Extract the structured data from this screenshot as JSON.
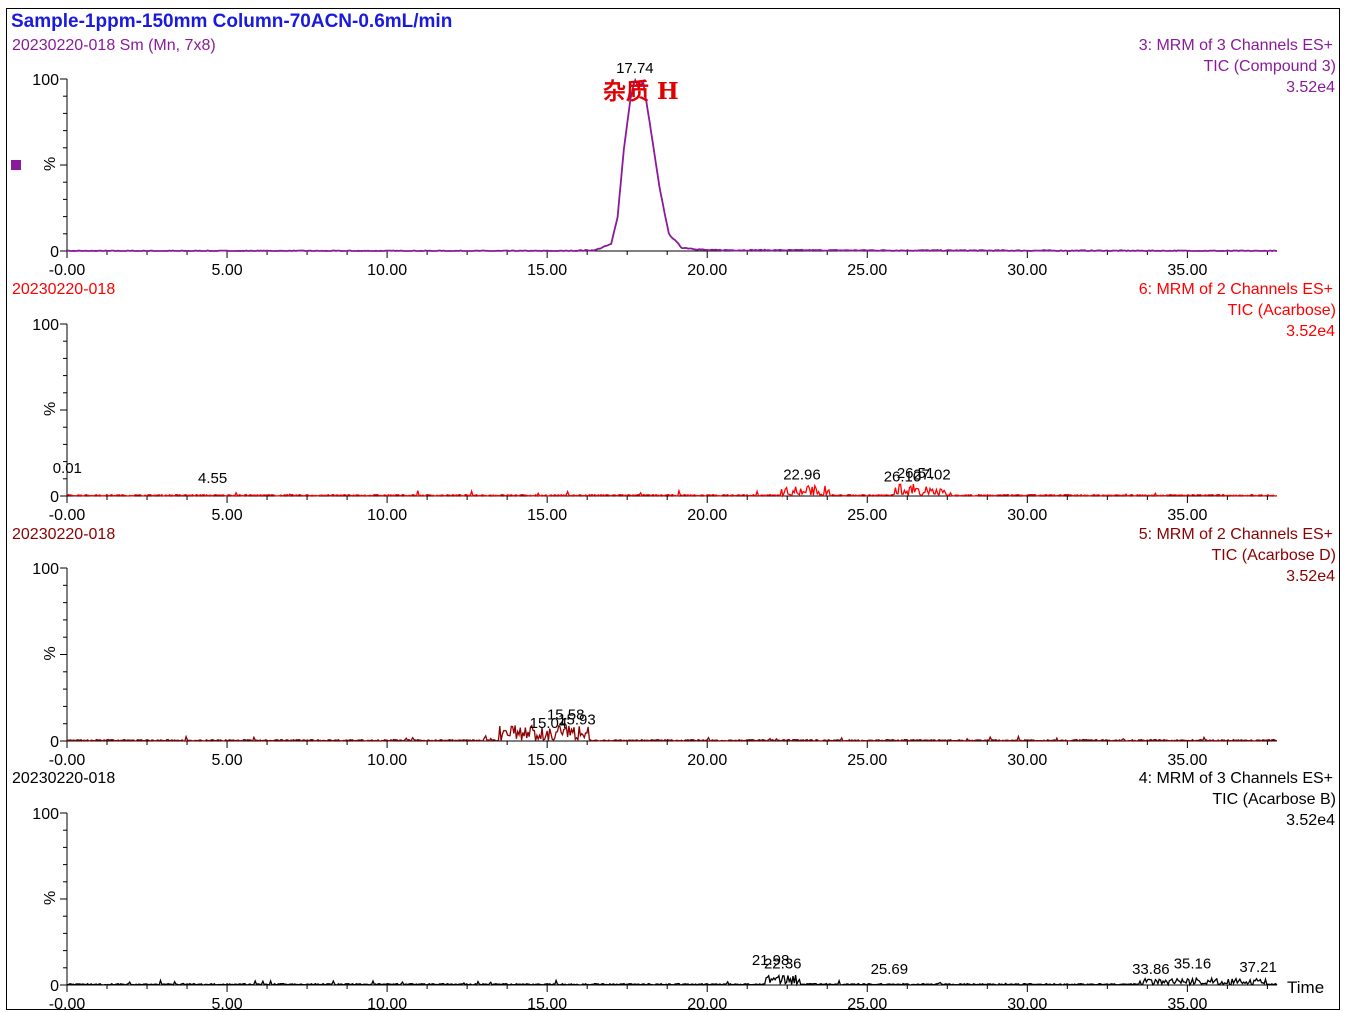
{
  "title": "Sample-1ppm-150mm Column-70ACN-0.6mL/min",
  "x_axis_label": "Time",
  "x_ticks": [
    "-0.00",
    "5.00",
    "10.00",
    "15.00",
    "20.00",
    "25.00",
    "30.00",
    "35.00"
  ],
  "y_tick_labels": {
    "top": "100",
    "bottom": "0",
    "unit": "%"
  },
  "annotation": {
    "text": "杂质 H",
    "color": "#e00000"
  },
  "chart_data": [
    {
      "type": "line",
      "sample_label": "20230220-018 Sm (Mn, 7x8)",
      "channel": "3: MRM of 3 Channels ES+",
      "trace": "TIC (Compound 3)",
      "intensity": "3.52e4",
      "color": "#8b1a9b",
      "xlim": [
        0,
        37.8
      ],
      "ylim": [
        0,
        100
      ],
      "peaks": [
        {
          "x": 17.74,
          "y": 100,
          "label": "17.74"
        }
      ],
      "series": {
        "x": [
          0,
          15.5,
          16.5,
          17.0,
          17.2,
          17.4,
          17.6,
          17.74,
          17.85,
          18.0,
          18.2,
          18.5,
          18.8,
          19.2,
          20.0,
          37.8
        ],
        "values": [
          0,
          0,
          0.5,
          4,
          20,
          60,
          88,
          100,
          95,
          98,
          75,
          38,
          10,
          2,
          0.5,
          0
        ]
      }
    },
    {
      "type": "line",
      "sample_label": "20230220-018",
      "channel": "6: MRM of 2 Channels ES+",
      "trace": "TIC (Acarbose)",
      "intensity": "3.52e4",
      "color": "#ff0000",
      "xlim": [
        0,
        37.8
      ],
      "ylim": [
        0,
        100
      ],
      "peaks": [
        {
          "x": 0.01,
          "y": 10,
          "label": "0.01"
        },
        {
          "x": 4.55,
          "y": 4,
          "label": "4.55"
        },
        {
          "x": 22.96,
          "y": 6,
          "label": "22.96"
        },
        {
          "x": 26.1,
          "y": 5,
          "label": "26.10"
        },
        {
          "x": 26.51,
          "y": 7,
          "label": "26.51"
        },
        {
          "x": 27.02,
          "y": 6,
          "label": "27.02"
        }
      ],
      "clusters": [
        {
          "from": 22.3,
          "to": 23.8,
          "height": 6
        },
        {
          "from": 25.8,
          "to": 27.4,
          "height": 7
        }
      ]
    },
    {
      "type": "line",
      "sample_label": "20230220-018",
      "channel": "5: MRM of 2 Channels ES+",
      "trace": "TIC (Acarbose D)",
      "intensity": "3.52e4",
      "color": "#8b0000",
      "xlim": [
        0,
        37.8
      ],
      "ylim": [
        0,
        100
      ],
      "peaks": [
        {
          "x": 15.04,
          "y": 4,
          "label": "15.04"
        },
        {
          "x": 15.58,
          "y": 9,
          "label": "15.58"
        },
        {
          "x": 15.93,
          "y": 6,
          "label": "15.93"
        }
      ],
      "clusters": [
        {
          "from": 13.5,
          "to": 16.3,
          "height": 9
        }
      ]
    },
    {
      "type": "line",
      "sample_label": "20230220-018",
      "channel": "4: MRM of 3 Channels ES+",
      "trace": "TIC (Acarbose B)",
      "intensity": "3.52e4",
      "color": "#000000",
      "xlim": [
        0,
        37.8
      ],
      "ylim": [
        0,
        100
      ],
      "peaks": [
        {
          "x": 21.98,
          "y": 8,
          "label": "21.98"
        },
        {
          "x": 22.36,
          "y": 6,
          "label": "22.36"
        },
        {
          "x": 25.69,
          "y": 3,
          "label": "25.69"
        },
        {
          "x": 33.86,
          "y": 3,
          "label": "33.86"
        },
        {
          "x": 35.16,
          "y": 6,
          "label": "35.16"
        },
        {
          "x": 37.21,
          "y": 4,
          "label": "37.21"
        }
      ],
      "clusters": [
        {
          "from": 21.8,
          "to": 22.9,
          "height": 6
        },
        {
          "from": 33.5,
          "to": 37.5,
          "height": 4
        }
      ]
    }
  ]
}
